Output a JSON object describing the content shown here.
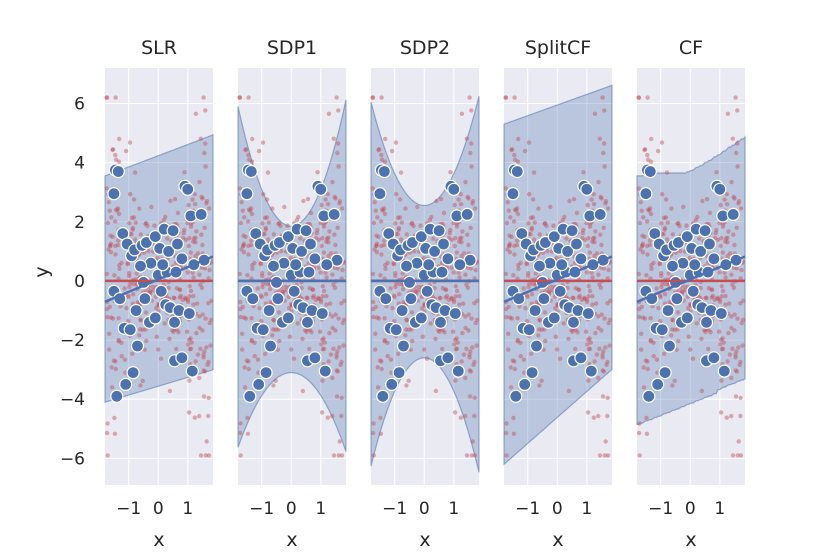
{
  "chart_data": {
    "type": "scatter",
    "ylabel": "y",
    "xlabel": "x",
    "ylim": [
      -6.9,
      7.2
    ],
    "xlim": [
      -1.8,
      1.85
    ],
    "xticks": [
      -1,
      0,
      1
    ],
    "xtick_labels": [
      "−1",
      "0",
      "1"
    ],
    "yticks": [
      -6,
      -4,
      -2,
      0,
      2,
      4,
      6
    ],
    "ytick_labels": [
      "−6",
      "−4",
      "−2",
      "0",
      "2",
      "4",
      "6"
    ],
    "panels": [
      {
        "title": "SLR",
        "band": "linear",
        "fit_slope": 0.42,
        "fit_intercept": 0.05
      },
      {
        "title": "SDP1",
        "band": "quadratic",
        "fit_slope": 0.0,
        "fit_intercept": 0.0
      },
      {
        "title": "SDP2",
        "band": "quadratic2",
        "fit_slope": 0.0,
        "fit_intercept": 0.0
      },
      {
        "title": "SplitCF",
        "band": "split",
        "fit_slope": 0.42,
        "fit_intercept": 0.05
      },
      {
        "title": "CF",
        "band": "steps",
        "fit_slope": 0.42,
        "fit_intercept": 0.05
      }
    ],
    "highlight_points": [
      {
        "x": -1.45,
        "y": 3.75
      },
      {
        "x": -1.35,
        "y": 3.7
      },
      {
        "x": -1.5,
        "y": 2.95
      },
      {
        "x": -1.2,
        "y": 1.6
      },
      {
        "x": -1.05,
        "y": 1.25
      },
      {
        "x": -0.9,
        "y": 0.85
      },
      {
        "x": -0.8,
        "y": 1.05
      },
      {
        "x": -0.55,
        "y": 1.2
      },
      {
        "x": -0.4,
        "y": 1.3
      },
      {
        "x": -0.25,
        "y": 0.6
      },
      {
        "x": -0.1,
        "y": 1.5
      },
      {
        "x": 0.05,
        "y": 1.1
      },
      {
        "x": 0.2,
        "y": 1.75
      },
      {
        "x": 0.35,
        "y": 1.0
      },
      {
        "x": 0.5,
        "y": 1.7
      },
      {
        "x": 0.65,
        "y": 1.25
      },
      {
        "x": 0.8,
        "y": 0.75
      },
      {
        "x": 0.9,
        "y": 3.2
      },
      {
        "x": 1.0,
        "y": 3.1
      },
      {
        "x": 1.1,
        "y": 2.2
      },
      {
        "x": 1.45,
        "y": 2.25
      },
      {
        "x": 1.55,
        "y": 0.7
      },
      {
        "x": 1.2,
        "y": 0.55
      },
      {
        "x": -0.6,
        "y": 0.5
      },
      {
        "x": -1.5,
        "y": -0.35
      },
      {
        "x": -1.3,
        "y": -0.6
      },
      {
        "x": -1.15,
        "y": -1.6
      },
      {
        "x": -0.95,
        "y": -1.65
      },
      {
        "x": -0.7,
        "y": -2.2
      },
      {
        "x": -0.75,
        "y": -1.0
      },
      {
        "x": -0.45,
        "y": -0.6
      },
      {
        "x": -0.3,
        "y": -1.4
      },
      {
        "x": -0.1,
        "y": -1.25
      },
      {
        "x": 0.1,
        "y": -0.35
      },
      {
        "x": 0.25,
        "y": -0.8
      },
      {
        "x": 0.4,
        "y": -0.9
      },
      {
        "x": 0.55,
        "y": -1.4
      },
      {
        "x": 0.7,
        "y": -1.0
      },
      {
        "x": 1.05,
        "y": -1.1
      },
      {
        "x": 0.55,
        "y": -2.7
      },
      {
        "x": 0.8,
        "y": -2.6
      },
      {
        "x": 1.15,
        "y": -3.05
      },
      {
        "x": -0.85,
        "y": -3.1
      },
      {
        "x": -1.1,
        "y": -3.5
      },
      {
        "x": -1.4,
        "y": -3.9
      },
      {
        "x": 0.0,
        "y": 0.2
      },
      {
        "x": 0.3,
        "y": 0.3
      },
      {
        "x": -0.5,
        "y": -0.05
      },
      {
        "x": 0.15,
        "y": 0.55
      },
      {
        "x": 0.6,
        "y": 0.3
      }
    ]
  }
}
